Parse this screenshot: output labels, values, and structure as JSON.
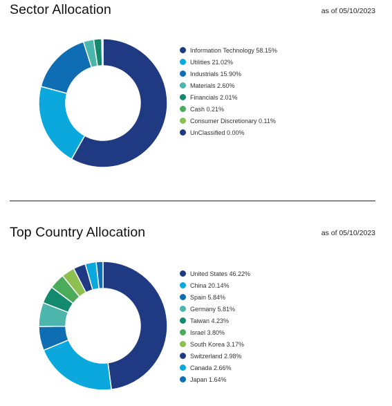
{
  "chart_data": [
    {
      "type": "donut",
      "title": "Sector Allocation",
      "as_of": "as of 05/10/2023",
      "series": [
        {
          "label": "Information Technology",
          "value_text": "58.15%",
          "value": 58.15,
          "color": "#1f3a82"
        },
        {
          "label": "Utilities",
          "value_text": "21.02%",
          "value": 21.02,
          "color": "#0aa8dd"
        },
        {
          "label": "Industrials",
          "value_text": "15.90%",
          "value": 15.9,
          "color": "#0f6eb3"
        },
        {
          "label": "Materials",
          "value_text": "2.60%",
          "value": 2.6,
          "color": "#4db6ac"
        },
        {
          "label": "Financials",
          "value_text": "2.01%",
          "value": 2.01,
          "color": "#138a6e"
        },
        {
          "label": "Cash",
          "value_text": "0.21%",
          "value": 0.21,
          "color": "#4aac5a"
        },
        {
          "label": "Consumer Discretionary",
          "value_text": "0.11%",
          "value": 0.11,
          "color": "#8cc152"
        },
        {
          "label": "UnClassified",
          "value_text": "0.00%",
          "value": 0.0,
          "color": "#1f3a82"
        }
      ]
    },
    {
      "type": "donut",
      "title": "Top Country Allocation",
      "as_of": "as of 05/10/2023",
      "series": [
        {
          "label": "United States",
          "value_text": "46.22%",
          "value": 46.22,
          "color": "#1f3a82"
        },
        {
          "label": "China",
          "value_text": "20.14%",
          "value": 20.14,
          "color": "#0aa8dd"
        },
        {
          "label": "Spain",
          "value_text": "5.84%",
          "value": 5.84,
          "color": "#0f6eb3"
        },
        {
          "label": "Germany",
          "value_text": "5.81%",
          "value": 5.81,
          "color": "#4db6ac"
        },
        {
          "label": "Taiwan",
          "value_text": "4.23%",
          "value": 4.23,
          "color": "#138a6e"
        },
        {
          "label": "Israel",
          "value_text": "3.80%",
          "value": 3.8,
          "color": "#4aac5a"
        },
        {
          "label": "South Korea",
          "value_text": "3.17%",
          "value": 3.17,
          "color": "#8cc152"
        },
        {
          "label": "Switzerland",
          "value_text": "2.98%",
          "value": 2.98,
          "color": "#1f3a82"
        },
        {
          "label": "Canada",
          "value_text": "2.66%",
          "value": 2.66,
          "color": "#0aa8dd"
        },
        {
          "label": "Japan",
          "value_text": "1.64%",
          "value": 1.64,
          "color": "#0f6eb3"
        }
      ]
    }
  ]
}
